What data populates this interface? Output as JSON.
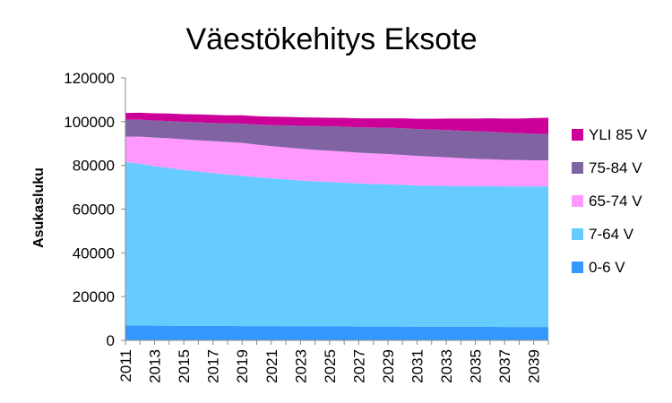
{
  "chart_data": {
    "type": "area",
    "stacked": true,
    "title": "Väestökehitys Eksote",
    "xlabel": "",
    "ylabel": "Asukasluku",
    "ylim": [
      0,
      120000
    ],
    "yticks": [
      "0",
      "20000",
      "40000",
      "60000",
      "80000",
      "100000",
      "120000"
    ],
    "yticks_values": [
      0,
      20000,
      40000,
      60000,
      80000,
      100000,
      120000
    ],
    "x": [
      2011,
      2012,
      2013,
      2014,
      2015,
      2016,
      2017,
      2018,
      2019,
      2020,
      2021,
      2022,
      2023,
      2024,
      2025,
      2026,
      2027,
      2028,
      2029,
      2030,
      2031,
      2032,
      2033,
      2034,
      2035,
      2036,
      2037,
      2038,
      2039,
      2040
    ],
    "xticks": [
      "2011",
      "2013",
      "2015",
      "2017",
      "2019",
      "2021",
      "2023",
      "2025",
      "2027",
      "2029",
      "2031",
      "2033",
      "2035",
      "2037",
      "2039"
    ],
    "grid": false,
    "legend_position": "right",
    "series": [
      {
        "name": "0-6 V",
        "color": "#3399FF",
        "values": [
          6800,
          6800,
          6700,
          6700,
          6600,
          6600,
          6600,
          6600,
          6500,
          6500,
          6500,
          6500,
          6400,
          6400,
          6400,
          6400,
          6300,
          6300,
          6300,
          6300,
          6200,
          6200,
          6200,
          6200,
          6200,
          6200,
          6100,
          6100,
          6100,
          6100
        ]
      },
      {
        "name": "7-64 V",
        "color": "#66CCFF",
        "values": [
          74700,
          73900,
          72900,
          72100,
          71300,
          70600,
          69900,
          69200,
          68700,
          68100,
          67600,
          67100,
          66700,
          66300,
          66000,
          65700,
          65400,
          65200,
          65000,
          64800,
          64600,
          64500,
          64400,
          64300,
          64300,
          64300,
          64300,
          64300,
          64300,
          64300
        ]
      },
      {
        "name": "65-74 V",
        "color": "#FF99FF",
        "values": [
          11700,
          12400,
          13100,
          13600,
          14000,
          14300,
          14600,
          14900,
          15100,
          14900,
          14700,
          14600,
          14500,
          14400,
          14300,
          14200,
          14100,
          14000,
          13900,
          13700,
          13500,
          13300,
          13100,
          12800,
          12500,
          12300,
          12100,
          12000,
          11900,
          11900
        ]
      },
      {
        "name": "75-84 V",
        "color": "#8064A2",
        "values": [
          7700,
          7800,
          7800,
          7900,
          8000,
          8200,
          8300,
          8500,
          8800,
          9200,
          9600,
          10100,
          10500,
          10900,
          11200,
          11400,
          11600,
          11800,
          12000,
          12200,
          12300,
          12400,
          12500,
          12600,
          12600,
          12600,
          12500,
          12300,
          12200,
          12000
        ]
      },
      {
        "name": "YLI 85 V",
        "color": "#CC0099",
        "values": [
          3100,
          3200,
          3300,
          3400,
          3500,
          3600,
          3700,
          3700,
          3800,
          3800,
          3900,
          3900,
          3900,
          3900,
          3900,
          4000,
          4100,
          4200,
          4300,
          4500,
          4700,
          4900,
          5200,
          5500,
          5800,
          6100,
          6400,
          6700,
          7100,
          7500
        ]
      }
    ],
    "legend_order": [
      "YLI 85 V",
      "75-84 V",
      "65-74 V",
      "7-64 V",
      "0-6 V"
    ]
  }
}
